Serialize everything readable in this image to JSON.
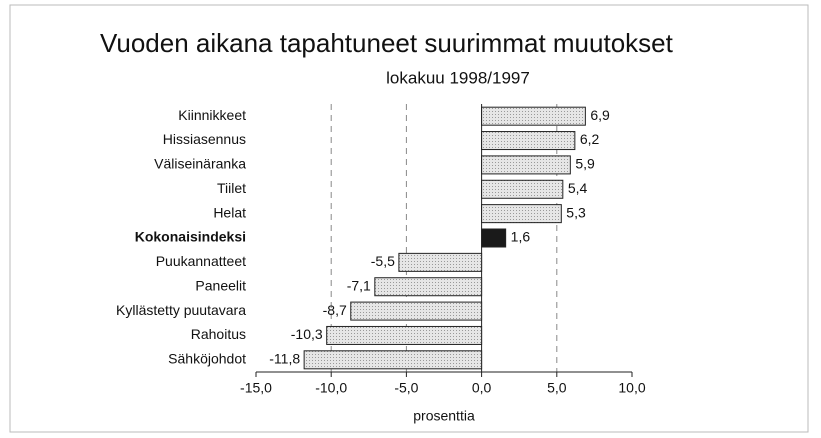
{
  "chart_data": {
    "type": "bar",
    "orientation": "horizontal",
    "title": "Vuoden aikana tapahtuneet suurimmat muutokset",
    "subtitle": "lokakuu 1998/1997",
    "x_label": "prosenttia",
    "categories": [
      "Kiinnikkeet",
      "Hissiasennus",
      "Väliseinäranka",
      "Tiilet",
      "Helat",
      "Kokonaisindeksi",
      "Puukannatteet",
      "Paneelit",
      "Kyllästetty puutavara",
      "Rahoitus",
      "Sähköjohdot"
    ],
    "values": [
      6.9,
      6.2,
      5.9,
      5.4,
      5.3,
      1.6,
      -5.5,
      -7.1,
      -8.7,
      -10.3,
      -11.8
    ],
    "value_labels": [
      "6,9",
      "6,2",
      "5,9",
      "5,4",
      "5,3",
      "1,6",
      "-5,5",
      "-7,1",
      "-8,7",
      "-10,3",
      "-11,8"
    ],
    "color": "#d4d4d4",
    "highlight_color": "#1a1a1a",
    "highlight": 5,
    "xlim": [
      -15,
      10
    ],
    "xticks": [
      {
        "value": -15,
        "label": "-15,0"
      },
      {
        "value": -10,
        "label": "-10,0"
      },
      {
        "value": -5,
        "label": "-5,0"
      },
      {
        "value": 0,
        "label": "0,0"
      },
      {
        "value": 5,
        "label": "5,0"
      },
      {
        "value": 10,
        "label": "10,0"
      }
    ],
    "grid": true
  }
}
